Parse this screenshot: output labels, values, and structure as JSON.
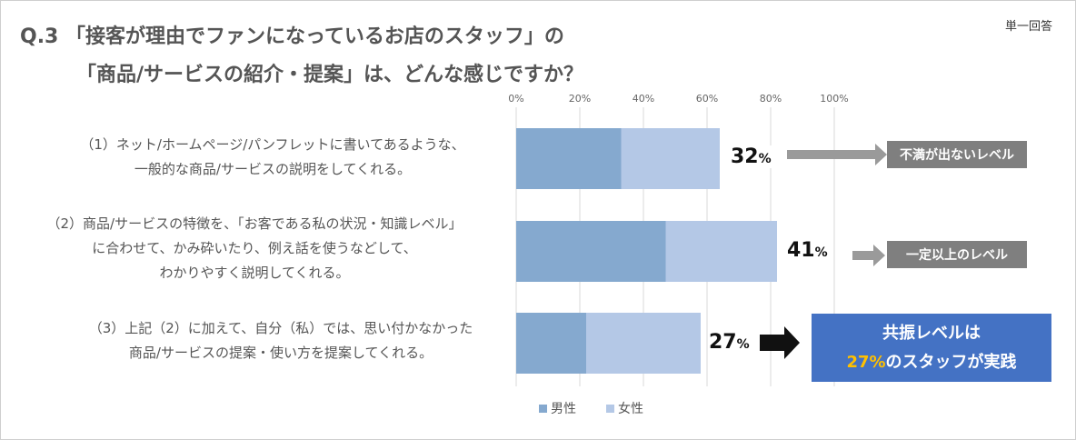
{
  "title": {
    "line1": "Q.3 「接客が理由でファンになっているお店のスタッフ」の",
    "line2": "「商品/サービスの紹介・提案」は、どんな感じですか？"
  },
  "answer_type": "単一回答",
  "items": [
    {
      "lines": [
        "（1）ネット/ホームページ/パンフレットに書いてあるような、",
        "一般的な商品/サービスの説明をしてくれる。"
      ],
      "percent_value": "32",
      "percent_unit": "%"
    },
    {
      "lines": [
        "（2）商品/サービスの特徴を、「お客である私の状況・知識レベル」",
        "に合わせて、かみ砕いたり、例え話を使うなどして、",
        "わかりやすく説明してくれる。"
      ],
      "percent_value": "41",
      "percent_unit": "%"
    },
    {
      "lines": [
        "（3）上記（2）に加えて、自分（私）では、思い付かなかった",
        "商品/サービスの提案・使い方を提案してくれる。"
      ],
      "percent_value": "27",
      "percent_unit": "%"
    }
  ],
  "callouts": {
    "box1": "不満が出ないレベル",
    "box2": "一定以上のレベル",
    "box3_line1": "共振レベルは",
    "box3_highlight": "27%",
    "box3_rest": "のスタッフが実践"
  },
  "colors": {
    "male": "#85a9cf",
    "female": "#b4c8e6",
    "highlight": "#4472c4",
    "highlight_text": "#ffc000",
    "gray_box": "#7f7f7f"
  },
  "chart_data": {
    "type": "bar",
    "orientation": "horizontal",
    "stacked": true,
    "categories": [
      "(1)",
      "(2)",
      "(3)"
    ],
    "series": [
      {
        "name": "男性",
        "values": [
          33,
          47,
          22
        ]
      },
      {
        "name": "女性",
        "values": [
          31,
          35,
          36
        ]
      }
    ],
    "xlim": [
      0,
      100
    ],
    "x_ticks": [
      "0%",
      "20%",
      "40%",
      "60%",
      "80%",
      "100%"
    ],
    "legend_position": "bottom",
    "grid": true
  }
}
